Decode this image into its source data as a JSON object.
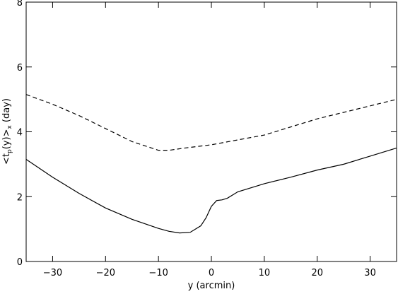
{
  "chart_data": {
    "type": "line",
    "xlabel": "y (arcmin)",
    "ylabel_parts": [
      "<t",
      "p",
      "(y)>",
      "x",
      " (day)"
    ],
    "xlim": [
      -35,
      35
    ],
    "ylim": [
      0,
      8
    ],
    "xticks": [
      {
        "value": -30,
        "label": "−30"
      },
      {
        "value": -20,
        "label": "−20"
      },
      {
        "value": -10,
        "label": "−10"
      },
      0,
      10,
      20,
      30
    ],
    "yticks": [
      0,
      2,
      4,
      6,
      8
    ],
    "series": [
      {
        "color": "#000000",
        "linestyle": "solid",
        "x": [
          -35,
          -30,
          -25,
          -20,
          -15,
          -10,
          -8,
          -6,
          -4,
          -2,
          -1,
          0,
          1,
          2,
          3,
          5,
          10,
          15,
          20,
          25,
          30,
          35
        ],
        "values": [
          3.15,
          2.6,
          2.1,
          1.65,
          1.3,
          1.02,
          0.93,
          0.88,
          0.9,
          1.1,
          1.35,
          1.7,
          1.88,
          1.9,
          1.95,
          2.15,
          2.4,
          2.6,
          2.82,
          3.0,
          3.25,
          3.5
        ]
      },
      {
        "color": "#000000",
        "linestyle": "dashed",
        "x": [
          -35,
          -30,
          -25,
          -20,
          -15,
          -10,
          -8,
          -5,
          0,
          5,
          10,
          15,
          20,
          25,
          30,
          35
        ],
        "values": [
          5.15,
          4.85,
          4.5,
          4.1,
          3.7,
          3.43,
          3.43,
          3.5,
          3.6,
          3.75,
          3.9,
          4.15,
          4.4,
          4.6,
          4.8,
          5.0
        ]
      }
    ]
  }
}
